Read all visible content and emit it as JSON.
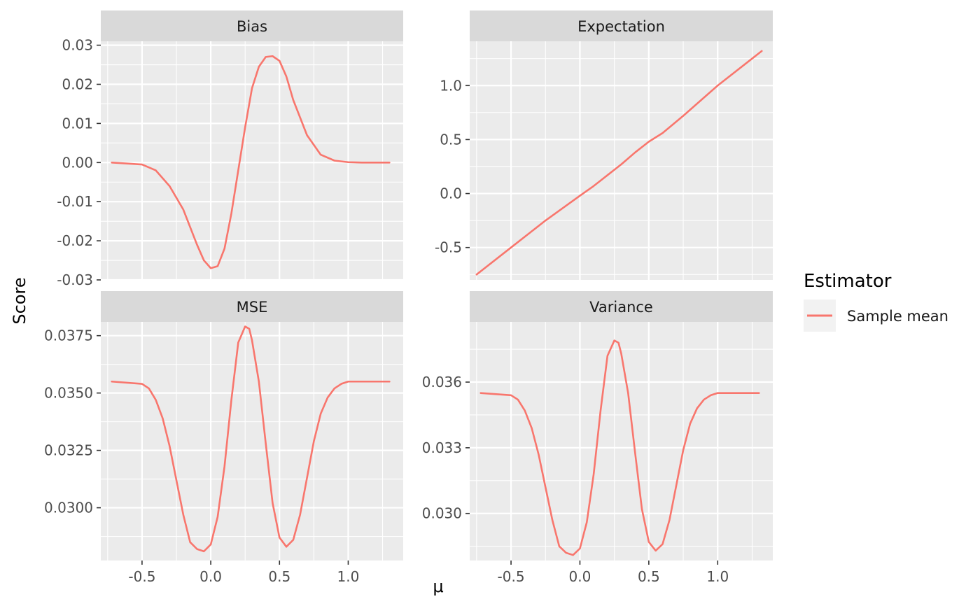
{
  "chart_data": [
    {
      "type": "line",
      "panel": "Bias",
      "strip_label": "Bias",
      "xlim": [
        -0.8,
        1.4
      ],
      "ylim": [
        -0.03,
        0.031
      ],
      "x_ticks": [
        -0.5,
        0.0,
        0.5,
        1.0
      ],
      "x_tick_labels": [
        "-0.5",
        "0.0",
        "0.5",
        "1.0"
      ],
      "y_ticks": [
        -0.03,
        -0.02,
        -0.01,
        0.0,
        0.01,
        0.02,
        0.03
      ],
      "y_tick_labels": [
        "-0.03",
        "-0.02",
        "-0.01",
        "0.00",
        "0.01",
        "0.02",
        "0.03"
      ],
      "show_x_labels": false,
      "series": [
        {
          "name": "Sample mean",
          "x": [
            -0.72,
            -0.5,
            -0.4,
            -0.3,
            -0.2,
            -0.1,
            -0.05,
            0.0,
            0.05,
            0.1,
            0.15,
            0.2,
            0.25,
            0.3,
            0.35,
            0.4,
            0.45,
            0.5,
            0.55,
            0.6,
            0.7,
            0.8,
            0.9,
            1.0,
            1.1,
            1.2,
            1.3
          ],
          "y": [
            0.0,
            -0.0005,
            -0.002,
            -0.006,
            -0.012,
            -0.021,
            -0.025,
            -0.027,
            -0.0265,
            -0.022,
            -0.013,
            -0.002,
            0.009,
            0.019,
            0.0245,
            0.027,
            0.0272,
            0.026,
            0.022,
            0.016,
            0.007,
            0.002,
            0.0005,
            0.0001,
            0.0,
            0.0,
            0.0
          ]
        }
      ]
    },
    {
      "type": "line",
      "panel": "Expectation",
      "strip_label": "Expectation",
      "xlim": [
        -0.8,
        1.4
      ],
      "ylim": [
        -0.8,
        1.41
      ],
      "x_ticks": [
        -0.5,
        0.0,
        0.5,
        1.0
      ],
      "x_tick_labels": [
        "-0.5",
        "0.0",
        "0.5",
        "1.0"
      ],
      "y_ticks": [
        -0.5,
        0.0,
        0.5,
        1.0
      ],
      "y_tick_labels": [
        "-0.5",
        "0.0",
        "0.5",
        "1.0"
      ],
      "show_x_labels": false,
      "series": [
        {
          "name": "Sample mean",
          "x": [
            -0.75,
            -0.5,
            -0.25,
            0.0,
            0.1,
            0.2,
            0.3,
            0.4,
            0.5,
            0.6,
            0.75,
            1.0,
            1.25,
            1.32
          ],
          "y": [
            -0.75,
            -0.5,
            -0.25,
            -0.02,
            0.07,
            0.17,
            0.27,
            0.38,
            0.48,
            0.56,
            0.72,
            1.0,
            1.25,
            1.32
          ]
        }
      ]
    },
    {
      "type": "line",
      "panel": "MSE",
      "strip_label": "MSE",
      "xlim": [
        -0.8,
        1.4
      ],
      "ylim": [
        0.0277,
        0.0381
      ],
      "x_ticks": [
        -0.5,
        0.0,
        0.5,
        1.0
      ],
      "x_tick_labels": [
        "-0.5",
        "0.0",
        "0.5",
        "1.0"
      ],
      "y_ticks": [
        0.03,
        0.0325,
        0.035,
        0.0375
      ],
      "y_tick_labels": [
        "0.0300",
        "0.0325",
        "0.0350",
        "0.0375"
      ],
      "show_x_labels": true,
      "series": [
        {
          "name": "Sample mean",
          "x": [
            -0.72,
            -0.5,
            -0.45,
            -0.4,
            -0.35,
            -0.3,
            -0.25,
            -0.2,
            -0.15,
            -0.1,
            -0.05,
            0.0,
            0.05,
            0.1,
            0.15,
            0.2,
            0.25,
            0.28,
            0.3,
            0.35,
            0.4,
            0.45,
            0.5,
            0.55,
            0.6,
            0.65,
            0.7,
            0.75,
            0.8,
            0.85,
            0.9,
            0.95,
            1.0,
            1.1,
            1.2,
            1.3
          ],
          "y": [
            0.0355,
            0.0354,
            0.0352,
            0.0347,
            0.0339,
            0.0327,
            0.0312,
            0.0297,
            0.0285,
            0.0282,
            0.0281,
            0.0284,
            0.0296,
            0.0318,
            0.0347,
            0.0372,
            0.0379,
            0.0378,
            0.0373,
            0.0355,
            0.0328,
            0.0302,
            0.0287,
            0.0283,
            0.0286,
            0.0297,
            0.0313,
            0.0329,
            0.0341,
            0.0348,
            0.0352,
            0.0354,
            0.0355,
            0.0355,
            0.0355,
            0.0355
          ]
        }
      ]
    },
    {
      "type": "line",
      "panel": "Variance",
      "strip_label": "Variance",
      "xlim": [
        -0.8,
        1.4
      ],
      "ylim": [
        0.02785,
        0.03875
      ],
      "x_ticks": [
        -0.5,
        0.0,
        0.5,
        1.0
      ],
      "x_tick_labels": [
        "-0.5",
        "0.0",
        "0.5",
        "1.0"
      ],
      "y_ticks": [
        0.03,
        0.033,
        0.036
      ],
      "y_tick_labels": [
        "0.030",
        "0.033",
        "0.036"
      ],
      "show_x_labels": true,
      "series": [
        {
          "name": "Sample mean",
          "x": [
            -0.72,
            -0.5,
            -0.45,
            -0.4,
            -0.35,
            -0.3,
            -0.25,
            -0.2,
            -0.15,
            -0.1,
            -0.05,
            0.0,
            0.05,
            0.1,
            0.15,
            0.2,
            0.25,
            0.28,
            0.3,
            0.35,
            0.4,
            0.45,
            0.5,
            0.55,
            0.6,
            0.65,
            0.7,
            0.75,
            0.8,
            0.85,
            0.9,
            0.95,
            1.0,
            1.1,
            1.2,
            1.3
          ],
          "y": [
            0.0355,
            0.0354,
            0.0352,
            0.0347,
            0.0339,
            0.0327,
            0.0312,
            0.0297,
            0.0285,
            0.0282,
            0.0281,
            0.0284,
            0.0296,
            0.0318,
            0.0347,
            0.0372,
            0.0379,
            0.0378,
            0.0373,
            0.0355,
            0.0328,
            0.0302,
            0.0287,
            0.0283,
            0.0286,
            0.0297,
            0.0313,
            0.0329,
            0.0341,
            0.0348,
            0.0352,
            0.0354,
            0.0355,
            0.0355,
            0.0355,
            0.0355
          ]
        }
      ]
    }
  ],
  "axes": {
    "xlabel": "μ",
    "ylabel": "Score"
  },
  "legend": {
    "title": "Estimator",
    "items": [
      {
        "label": "Sample mean",
        "color": "#F8766D"
      }
    ],
    "placement": "right"
  },
  "style": {
    "panel_background": "#EBEBEB",
    "strip_background": "#D9D9D9",
    "grid_color": "#FFFFFF",
    "line_color": "#F8766D",
    "tick_text_color": "#4D4D4D"
  }
}
